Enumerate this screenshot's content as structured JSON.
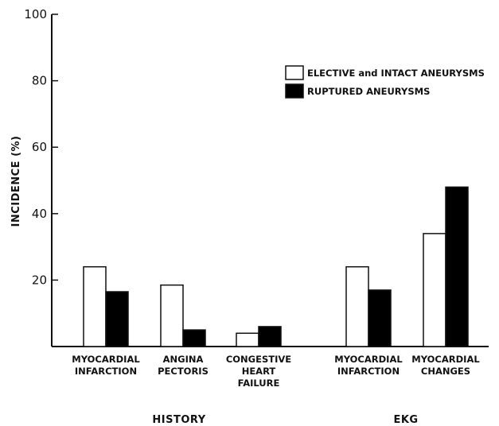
{
  "chart_data": {
    "type": "bar",
    "ylabel": "INCIDENCE (%)",
    "ylim": [
      0,
      100
    ],
    "yticks": [
      "20",
      "40",
      "60",
      "80",
      "100"
    ],
    "categories": [
      [
        "MYOCARDIAL",
        "INFARCTION"
      ],
      [
        "ANGINA",
        "PECTORIS"
      ],
      [
        "CONGESTIVE",
        "HEART",
        "FAILURE"
      ],
      [
        "MYOCARDIAL",
        "INFARCTION"
      ],
      [
        "MYOCARDIAL",
        "CHANGES"
      ]
    ],
    "groups": [
      {
        "label": "HISTORY",
        "categories": [
          0,
          1,
          2
        ]
      },
      {
        "label": "EKG",
        "categories": [
          3,
          4
        ]
      }
    ],
    "series": [
      {
        "name": "ELECTIVE and INTACT ANEURYSMS",
        "color": "#ffffff",
        "values": [
          24,
          18.5,
          4,
          24,
          34
        ]
      },
      {
        "name": "RUPTURED ANEURYSMS",
        "color": "#000000",
        "values": [
          16.5,
          5,
          6,
          17,
          48
        ]
      }
    ],
    "legend": "top-right"
  }
}
